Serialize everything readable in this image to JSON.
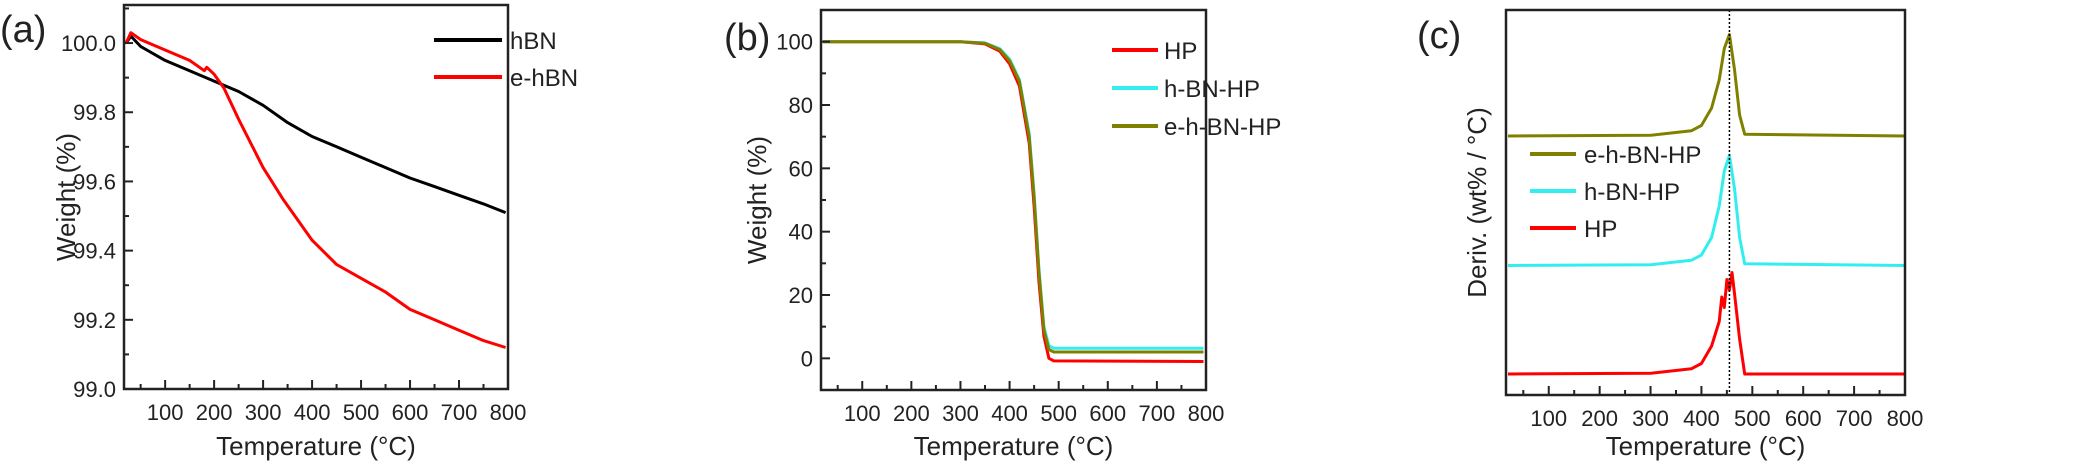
{
  "chart_data": [
    {
      "panel_label": "(a)",
      "type": "line",
      "xlabel": "Temperature (°C)",
      "ylabel": "Weight (%)",
      "xlim": [
        16,
        800
      ],
      "ylim": [
        99.0,
        100.11
      ],
      "xticks": [
        100,
        200,
        300,
        400,
        500,
        600,
        700,
        800
      ],
      "yticks": [
        "99.0",
        "99.2",
        "99.4",
        "99.6",
        "99.8",
        "100.0"
      ],
      "legend": "top-right",
      "grid": false,
      "series": [
        {
          "name": "hBN",
          "color": "#000000",
          "x": [
            20,
            30,
            50,
            100,
            150,
            200,
            250,
            300,
            350,
            400,
            450,
            500,
            550,
            600,
            650,
            700,
            750,
            795
          ],
          "y": [
            100.0,
            100.02,
            99.99,
            99.95,
            99.92,
            99.89,
            99.86,
            99.82,
            99.77,
            99.73,
            99.7,
            99.67,
            99.64,
            99.61,
            99.585,
            99.56,
            99.535,
            99.51
          ]
        },
        {
          "name": "e-hBN",
          "color": "#ff0000",
          "x": [
            20,
            30,
            50,
            100,
            150,
            180,
            185,
            200,
            220,
            250,
            300,
            340,
            400,
            450,
            500,
            550,
            600,
            650,
            700,
            750,
            795
          ],
          "y": [
            100.0,
            100.03,
            100.01,
            99.98,
            99.95,
            99.92,
            99.93,
            99.91,
            99.87,
            99.78,
            99.64,
            99.55,
            99.43,
            99.36,
            99.32,
            99.28,
            99.23,
            99.2,
            99.17,
            99.14,
            99.12
          ]
        }
      ]
    },
    {
      "panel_label": "(b)",
      "type": "line",
      "xlabel": "Temperature (°C)",
      "ylabel": "Weight (%)",
      "xlim": [
        16,
        800
      ],
      "ylim": [
        -10,
        110
      ],
      "xticks": [
        100,
        200,
        300,
        400,
        500,
        600,
        700,
        800
      ],
      "yticks": [
        "0",
        "20",
        "40",
        "60",
        "80",
        "100"
      ],
      "legend": "top-right",
      "grid": false,
      "series": [
        {
          "name": "HP",
          "color": "#ff0000",
          "x": [
            20,
            300,
            350,
            380,
            400,
            420,
            440,
            450,
            460,
            470,
            480,
            490,
            795
          ],
          "y": [
            100,
            100,
            99.3,
            97,
            93,
            86,
            68,
            48,
            24,
            7,
            0,
            -0.8,
            -1
          ]
        },
        {
          "name": "h-BN-HP",
          "color": "#33eeee",
          "x": [
            20,
            300,
            350,
            380,
            400,
            420,
            440,
            450,
            460,
            470,
            480,
            490,
            795
          ],
          "y": [
            100,
            100,
            99.6,
            97.8,
            94.5,
            88,
            71,
            52,
            28,
            10,
            4,
            3.2,
            3.2
          ]
        },
        {
          "name": "e-h-BN-HP",
          "color": "#808000",
          "x": [
            20,
            300,
            350,
            380,
            400,
            420,
            440,
            450,
            460,
            470,
            480,
            490,
            795
          ],
          "y": [
            100,
            100,
            99.5,
            97.5,
            94,
            87.5,
            70,
            51,
            27,
            9,
            2.8,
            2.0,
            2.0
          ]
        }
      ]
    },
    {
      "panel_label": "(c)",
      "type": "line",
      "xlabel": "Temperature (°C)",
      "ylabel": "Deriv. (wt% / °C)",
      "xlim": [
        16,
        800
      ],
      "ylim": [
        0,
        11
      ],
      "xticks": [
        100,
        200,
        300,
        400,
        500,
        600,
        700,
        800
      ],
      "yticks": [],
      "legend": "middle-left",
      "grid": false,
      "reference_line_x": 455,
      "series": [
        {
          "name": "e-h-BN-HP",
          "color": "#808000",
          "x": [
            20,
            300,
            380,
            400,
            420,
            435,
            445,
            455,
            465,
            475,
            485,
            800
          ],
          "y": [
            7.4,
            7.42,
            7.55,
            7.7,
            8.2,
            9.0,
            9.9,
            10.3,
            9.3,
            8.0,
            7.45,
            7.4
          ]
        },
        {
          "name": "h-BN-HP",
          "color": "#33eeee",
          "x": [
            20,
            300,
            380,
            400,
            420,
            435,
            445,
            455,
            465,
            475,
            485,
            800
          ],
          "y": [
            3.7,
            3.72,
            3.85,
            4.0,
            4.5,
            5.4,
            6.4,
            6.85,
            5.9,
            4.5,
            3.75,
            3.7
          ]
        },
        {
          "name": "HP",
          "color": "#ff0000",
          "x": [
            20,
            300,
            380,
            400,
            420,
            435,
            440,
            445,
            450,
            455,
            460,
            465,
            475,
            485,
            800
          ],
          "y": [
            0.6,
            0.62,
            0.75,
            0.9,
            1.4,
            2.1,
            2.8,
            2.5,
            3.3,
            3.0,
            3.5,
            2.9,
            1.6,
            0.6,
            0.6
          ]
        }
      ]
    }
  ]
}
